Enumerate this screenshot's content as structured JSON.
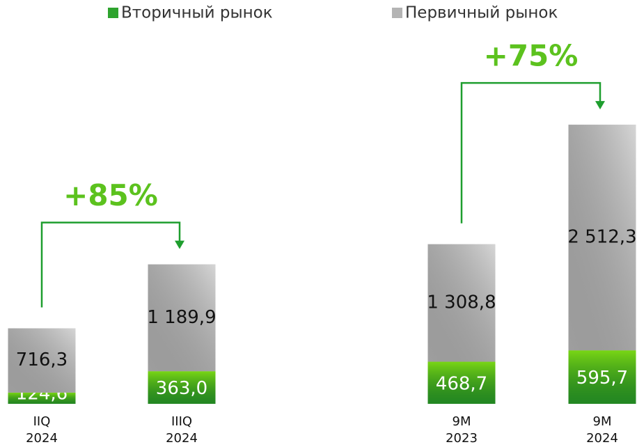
{
  "chart_data": {
    "type": "stacked_bar",
    "categories": [
      [
        "IIQ",
        "2024"
      ],
      [
        "IIIQ",
        "2024"
      ],
      [
        "9M",
        "2023"
      ],
      [
        "9M",
        "2024"
      ]
    ],
    "series": [
      {
        "name": "Вторичный рынок",
        "color": "#2ea32e",
        "values": [
          124.6,
          363.0,
          468.7,
          595.7
        ],
        "value_labels": [
          "124,6",
          "363,0",
          "468,7",
          "595,7"
        ]
      },
      {
        "name": "Первичный рынок",
        "color": "#b4b4b4",
        "values": [
          716.3,
          1189.9,
          1308.8,
          2512.3
        ],
        "value_labels": [
          "716,3",
          "1 189,9",
          "1 308,8",
          "2 512,3"
        ]
      }
    ],
    "annotations": [
      {
        "text": "+85%"
      },
      {
        "text": "+75%"
      }
    ]
  }
}
